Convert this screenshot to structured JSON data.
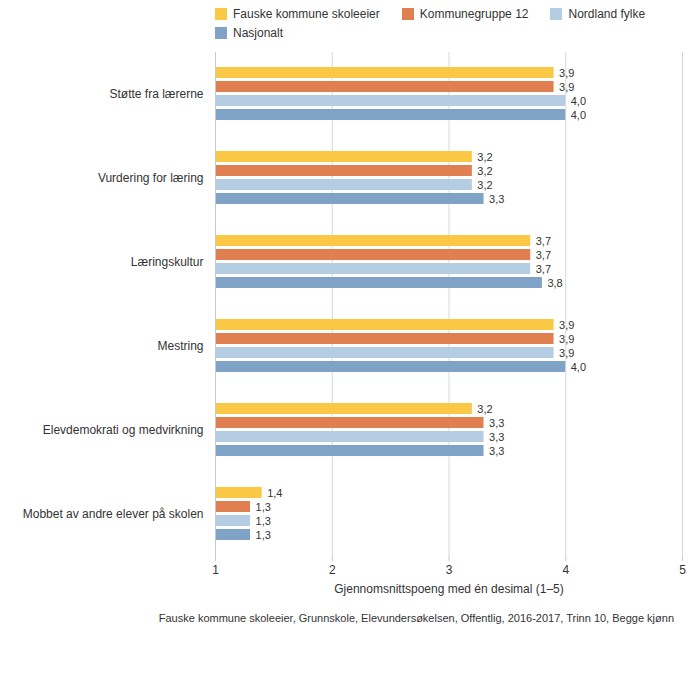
{
  "chart_data": {
    "type": "bar",
    "orientation": "horizontal",
    "xlabel": "Gjennomsnittspoeng med én desimal (1–5)",
    "caption": "Fauske kommune skoleeier, Grunnskole, Elevundersøkelsen, Offentlig, 2016-2017, Trinn 10, Begge kjønn",
    "categories": [
      "Støtte fra lærerne",
      "Vurdering for læring",
      "Læringskultur",
      "Mestring",
      "Elevdemokrati og medvirkning",
      "Mobbet av andre elever på skolen"
    ],
    "series": [
      {
        "name": "Fauske kommune skoleeier",
        "color": "#fbc845",
        "values": [
          3.9,
          3.2,
          3.7,
          3.9,
          3.2,
          1.4
        ],
        "value_labels": [
          "3,9",
          "3,2",
          "3,7",
          "3,9",
          "3,2",
          "1,4"
        ]
      },
      {
        "name": "Kommunegruppe 12",
        "color": "#e07f50",
        "values": [
          3.9,
          3.2,
          3.7,
          3.9,
          3.3,
          1.3
        ],
        "value_labels": [
          "3,9",
          "3,2",
          "3,7",
          "3,9",
          "3,3",
          "1,3"
        ]
      },
      {
        "name": "Nordland fylke",
        "color": "#b5cde3",
        "values": [
          4.0,
          3.2,
          3.7,
          3.9,
          3.3,
          1.3
        ],
        "value_labels": [
          "4,0",
          "3,2",
          "3,7",
          "3,9",
          "3,3",
          "1,3"
        ]
      },
      {
        "name": "Nasjonalt",
        "color": "#7fa3c6",
        "values": [
          4.0,
          3.3,
          3.8,
          4.0,
          3.3,
          1.3
        ],
        "value_labels": [
          "4,0",
          "3,3",
          "3,8",
          "4,0",
          "3,3",
          "1,3"
        ]
      }
    ],
    "xlim": [
      1,
      5
    ],
    "xticks": [
      1,
      2,
      3,
      4,
      5
    ],
    "grid": true,
    "legend": "top",
    "data_labels": true
  }
}
